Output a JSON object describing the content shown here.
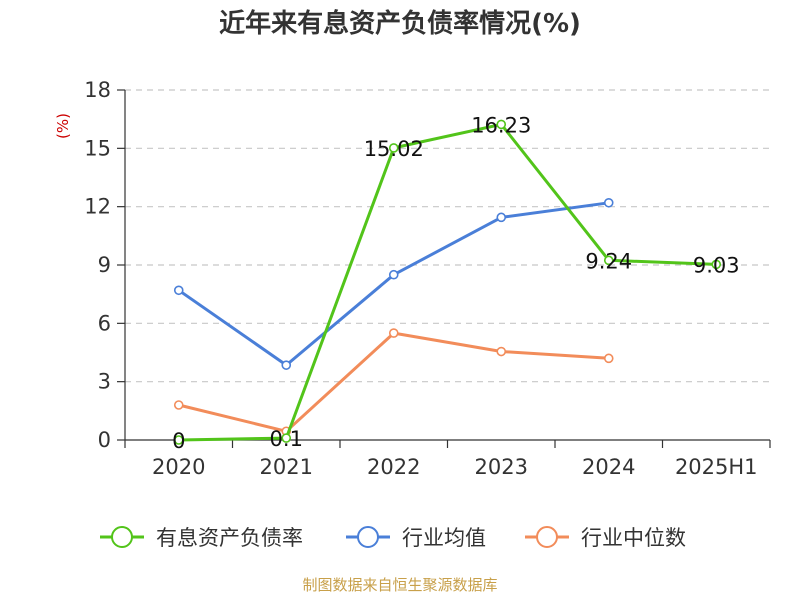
{
  "chart_data": {
    "type": "line",
    "title": "近年来有息资产负债率情况(%)",
    "ylabel": "(%)",
    "xlabel": "",
    "ylim": [
      0,
      18
    ],
    "yticks": [
      0,
      3,
      6,
      9,
      12,
      15,
      18
    ],
    "grid": true,
    "legend_position": "bottom",
    "categories": [
      "2020",
      "2021",
      "2022",
      "2023",
      "2024",
      "2025H1"
    ],
    "series": [
      {
        "name": "有息资产负债率",
        "color": "#52c41a",
        "values": [
          0,
          0.1,
          15.02,
          16.23,
          9.24,
          9.03
        ],
        "labels": [
          "0",
          "0.1",
          "15.02",
          "16.23",
          "9.24",
          "9.03"
        ]
      },
      {
        "name": "行业均值",
        "color": "#4a7fd8",
        "values": [
          7.7,
          3.85,
          8.5,
          11.45,
          12.2,
          null
        ]
      },
      {
        "name": "行业中位数",
        "color": "#f28c5a",
        "values": [
          1.8,
          0.45,
          5.5,
          4.55,
          4.2,
          null
        ]
      }
    ]
  },
  "source": "制图数据来自恒生聚源数据库"
}
